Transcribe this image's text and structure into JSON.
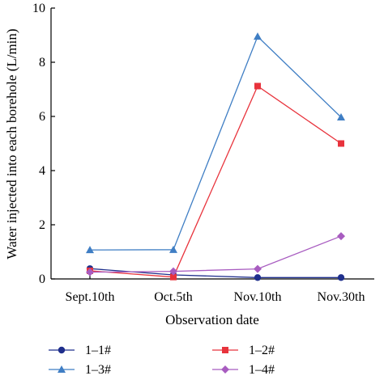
{
  "chart_data": {
    "type": "line",
    "title": "",
    "xlabel": "Observation date",
    "ylabel": "Water injected into each borehole (L/min)",
    "categories": [
      "Sept.10th",
      "Oct.5th",
      "Nov.10th",
      "Nov.30th"
    ],
    "ylim": [
      0,
      10
    ],
    "yticks": [
      "0",
      "2",
      "4",
      "6",
      "8",
      "10"
    ],
    "grid": false,
    "legend_position": "bottom",
    "series": [
      {
        "name": "1–1#",
        "color": "#1f2f8c",
        "marker": "circle",
        "values": [
          0.38,
          0.15,
          0.05,
          0.05
        ]
      },
      {
        "name": "1–2#",
        "color": "#e8333c",
        "marker": "square",
        "values": [
          0.3,
          0.07,
          7.12,
          5.0
        ]
      },
      {
        "name": "1–3#",
        "color": "#3f7ec4",
        "marker": "triangle",
        "values": [
          1.07,
          1.08,
          8.95,
          5.97
        ]
      },
      {
        "name": "1–4#",
        "color": "#a85cc0",
        "marker": "diamond",
        "values": [
          0.25,
          0.28,
          0.37,
          1.58
        ]
      }
    ]
  }
}
